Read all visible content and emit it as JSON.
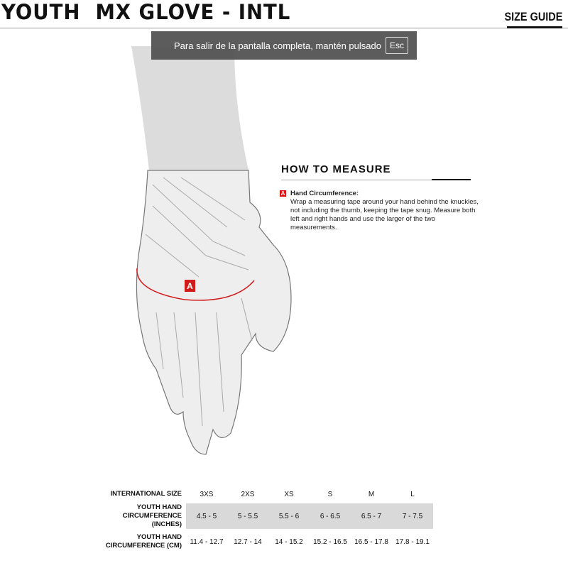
{
  "header": {
    "title": "YOUTH  MX GLOVE - INTL",
    "size_guide": "SIZE GUIDE"
  },
  "toast": {
    "text": "Para salir de la pantalla completa, mantén pulsado",
    "key": "Esc"
  },
  "measure": {
    "heading": "HOW TO MEASURE",
    "badge": "A",
    "item_title": "Hand Circumference:",
    "item_text": "Wrap a measuring tape around your hand behind the knuckles, not including the thumb, keeping the tape snug. Measure both left and right hands and use the larger of the two measurements."
  },
  "illustration": {
    "marker": "A",
    "accent": "#d11a1a"
  },
  "table": {
    "rows": [
      {
        "label": "INTERNATIONAL SIZE",
        "values": [
          "3XS",
          "2XS",
          "XS",
          "S",
          "M",
          "L"
        ]
      },
      {
        "label": "YOUTH HAND CIRCUMFERENCE (INCHES)",
        "values": [
          "4.5 - 5",
          "5 - 5.5",
          "5.5 - 6",
          "6 - 6.5",
          "6.5 - 7",
          "7 - 7.5"
        ]
      },
      {
        "label": "YOUTH HAND CIRCUMFERENCE (CM)",
        "values": [
          "11.4 - 12.7",
          "12.7 - 14",
          "14 - 15.2",
          "15.2 - 16.5",
          "16.5 - 17.8",
          "17.8 - 19.1"
        ]
      }
    ]
  }
}
